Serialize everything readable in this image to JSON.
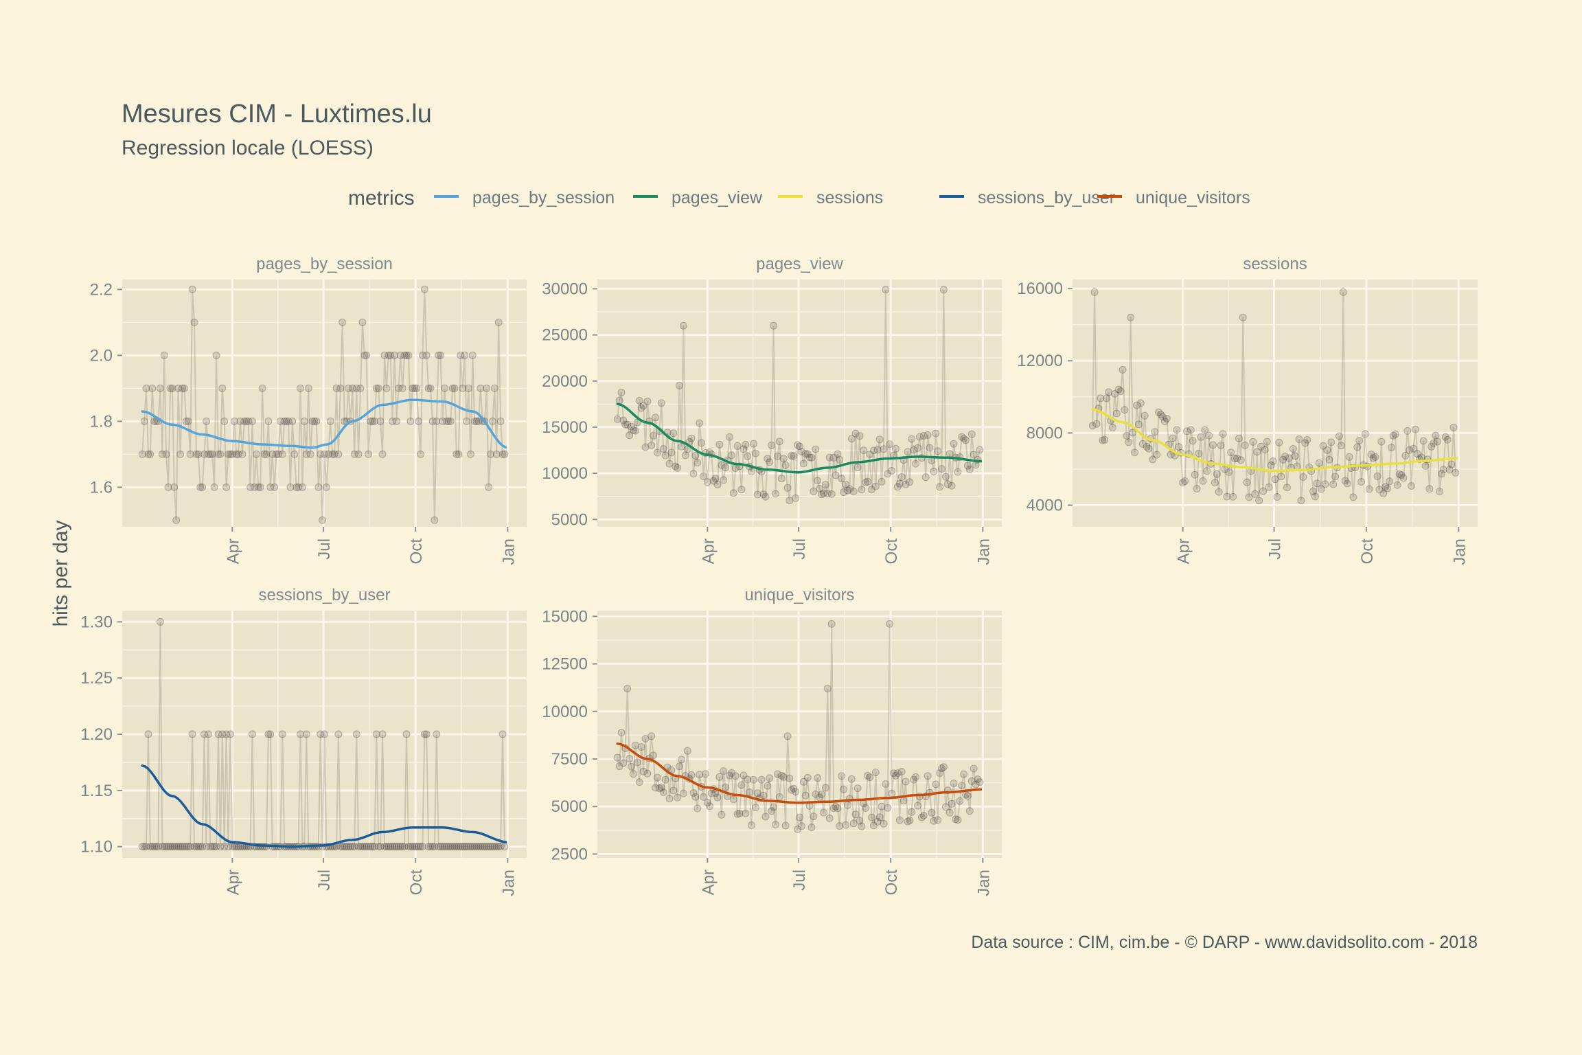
{
  "title": "Mesures CIM - Luxtimes.lu",
  "subtitle": "Regression locale (LOESS)",
  "ylabel": "hits per day",
  "caption": "Data source : CIM, cim.be - © DARP - www.davidsolito.com - 2018",
  "legend": {
    "title": "metrics",
    "items": [
      {
        "label": "pages_by_session",
        "color": "#56a4db"
      },
      {
        "label": "pages_view",
        "color": "#1a8a5c"
      },
      {
        "label": "sessions",
        "color": "#eadf3c"
      },
      {
        "label": "sessions_by_user",
        "color": "#1a5c9a"
      },
      {
        "label": "unique_visitors",
        "color": "#c94d0a"
      }
    ]
  },
  "chart_data": [
    {
      "type": "line",
      "panel": "pages_by_session",
      "color": "#56a4db",
      "ylim": [
        1.48,
        2.23
      ],
      "yticks": [
        1.6,
        1.8,
        2.0,
        2.2
      ],
      "ytick_labels": [
        "1.6",
        "1.8",
        "2.0",
        "2.2"
      ],
      "x_tick_labels": [
        "Apr",
        "Jul",
        "Oct",
        "Jan"
      ],
      "x_tick_days": [
        90,
        181,
        273,
        365
      ],
      "xlim": [
        -20,
        384
      ],
      "loess_days": [
        0,
        30,
        60,
        90,
        120,
        150,
        170,
        185,
        210,
        240,
        270,
        300,
        330,
        365
      ],
      "loess_values": [
        1.83,
        1.79,
        1.76,
        1.74,
        1.73,
        1.725,
        1.72,
        1.73,
        1.8,
        1.85,
        1.865,
        1.86,
        1.83,
        1.72
      ],
      "points": {
        "seed": 11,
        "base": [
          1.6,
          1.7,
          1.8,
          1.9
        ],
        "spikes": [
          1.5,
          2.0,
          2.1,
          2.2
        ],
        "step": 0.1,
        "decimals": 1
      }
    },
    {
      "type": "line",
      "panel": "pages_view",
      "color": "#1a8a5c",
      "ylim": [
        4200,
        31000
      ],
      "yticks": [
        5000,
        10000,
        15000,
        20000,
        25000,
        30000
      ],
      "ytick_labels": [
        "5000",
        "10000",
        "15000",
        "20000",
        "25000",
        "30000"
      ],
      "x_tick_labels": [
        "Apr",
        "Jul",
        "Oct",
        "Jan"
      ],
      "x_tick_days": [
        90,
        181,
        273,
        365
      ],
      "xlim": [
        -20,
        384
      ],
      "loess_days": [
        0,
        30,
        60,
        90,
        120,
        150,
        180,
        210,
        240,
        270,
        300,
        330,
        365
      ],
      "loess_values": [
        17500,
        15500,
        13500,
        12000,
        11000,
        10400,
        10100,
        10600,
        11200,
        11600,
        11800,
        11700,
        11300
      ],
      "points": {
        "seed": 23,
        "spread": 3200,
        "spikes": [
          27500,
          29900,
          23500,
          26000,
          24800,
          19500
        ],
        "decimals": 0
      }
    },
    {
      "type": "line",
      "panel": "sessions",
      "color": "#eadf3c",
      "ylim": [
        2800,
        16500
      ],
      "yticks": [
        4000,
        8000,
        12000,
        16000
      ],
      "ytick_labels": [
        "4000",
        "8000",
        "12000",
        "16000"
      ],
      "x_tick_labels": [
        "Apr",
        "Jul",
        "Oct",
        "Jan"
      ],
      "x_tick_days": [
        90,
        181,
        273,
        365
      ],
      "xlim": [
        -20,
        384
      ],
      "loess_days": [
        0,
        30,
        60,
        90,
        120,
        150,
        180,
        210,
        240,
        270,
        300,
        330,
        365
      ],
      "loess_values": [
        9300,
        8600,
        7600,
        6800,
        6300,
        6100,
        5900,
        5950,
        6100,
        6200,
        6300,
        6450,
        6600
      ],
      "points": {
        "seed": 37,
        "spread": 1800,
        "spikes": [
          15800,
          14400,
          13800,
          15900,
          11500,
          11000
        ],
        "decimals": 0
      }
    },
    {
      "type": "line",
      "panel": "sessions_by_user",
      "color": "#1a5c9a",
      "ylim": [
        1.09,
        1.31
      ],
      "yticks": [
        1.1,
        1.15,
        1.2,
        1.25,
        1.3
      ],
      "ytick_labels": [
        "1.10",
        "1.15",
        "1.20",
        "1.25",
        "1.30"
      ],
      "x_tick_labels": [
        "Apr",
        "Jul",
        "Oct",
        "Jan"
      ],
      "x_tick_days": [
        90,
        181,
        273,
        365
      ],
      "xlim": [
        -20,
        384
      ],
      "loess_days": [
        0,
        30,
        60,
        90,
        120,
        150,
        180,
        210,
        240,
        270,
        300,
        330,
        365
      ],
      "loess_values": [
        1.172,
        1.145,
        1.12,
        1.104,
        1.101,
        1.1,
        1.101,
        1.106,
        1.113,
        1.117,
        1.117,
        1.113,
        1.104
      ],
      "points": {
        "seed": 41,
        "base": [
          1.1
        ],
        "spikes": [
          1.2,
          1.3
        ],
        "decimals": 2
      }
    },
    {
      "type": "line",
      "panel": "unique_visitors",
      "color": "#c94d0a",
      "ylim": [
        2300,
        15300
      ],
      "yticks": [
        2500,
        5000,
        7500,
        10000,
        12500,
        15000
      ],
      "ytick_labels": [
        "2500",
        "5000",
        "7500",
        "10000",
        "12500",
        "15000"
      ],
      "x_tick_labels": [
        "Apr",
        "Jul",
        "Oct",
        "Jan"
      ],
      "x_tick_days": [
        90,
        181,
        273,
        365
      ],
      "xlim": [
        -20,
        384
      ],
      "loess_days": [
        0,
        30,
        60,
        90,
        120,
        150,
        180,
        210,
        240,
        270,
        300,
        330,
        365
      ],
      "loess_values": [
        8300,
        7500,
        6600,
        6000,
        5600,
        5300,
        5200,
        5250,
        5350,
        5450,
        5600,
        5750,
        5900
      ],
      "points": {
        "seed": 53,
        "spread": 1500,
        "spikes": [
          13600,
          14600,
          11200,
          10200,
          8700,
          12200
        ],
        "decimals": 0
      }
    }
  ]
}
